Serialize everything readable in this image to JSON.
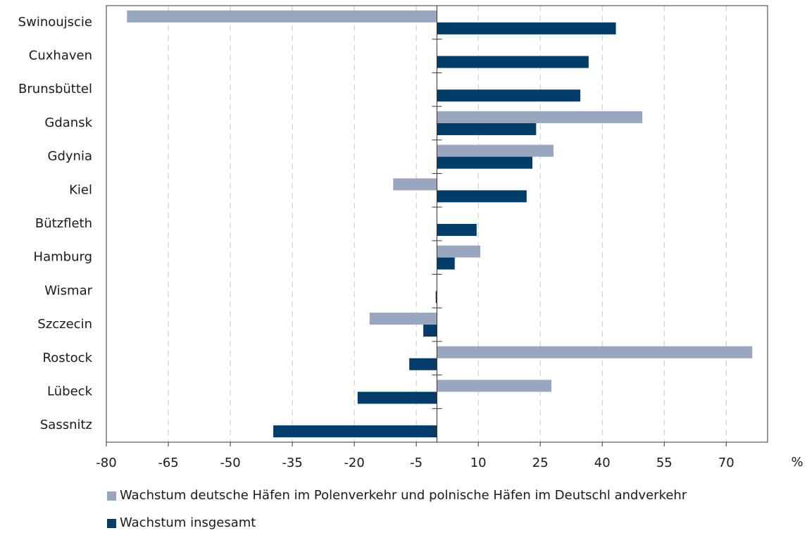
{
  "chart_data": {
    "type": "hbar",
    "categories": [
      "Swinoujscie",
      "Cuxhaven",
      "Brunsbüttel",
      "Gdansk",
      "Gdynia",
      "Kiel",
      "Bützfleth",
      "Hamburg",
      "Wismar",
      "Szczecin",
      "Rostock",
      "Lübeck",
      "Sassnitz"
    ],
    "series": [
      {
        "name": "Wachstum deutsche Häfen im Polenverkehr und polnische Häfen im Deutschl andverkehr",
        "color": "#98a7bf",
        "values": [
          -75,
          null,
          null,
          49.7,
          28.2,
          -10.6,
          null,
          10.5,
          null,
          -16.3,
          76.3,
          27.7,
          null
        ]
      },
      {
        "name": "Wachstum insgesamt",
        "color": "#003d6b",
        "values": [
          43.3,
          36.7,
          34.7,
          24,
          23.1,
          21.7,
          9.6,
          4.3,
          -0.3,
          -3.3,
          -6.7,
          -19.2,
          -39.6
        ]
      }
    ],
    "xlabel": "%",
    "xlim": [
      -80,
      80
    ],
    "xticks": [
      -80,
      -65,
      -50,
      -35,
      -20,
      -5,
      10,
      25,
      40,
      55,
      70
    ],
    "grid": true
  }
}
